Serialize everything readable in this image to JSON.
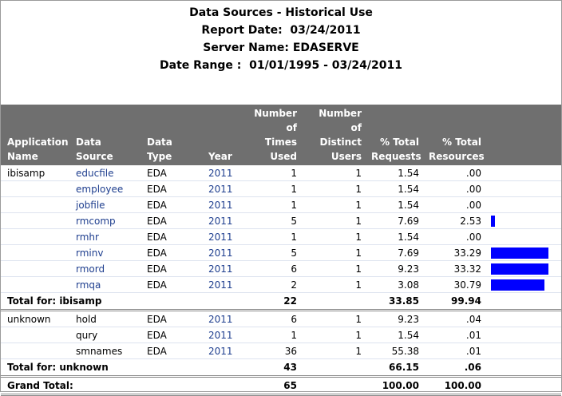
{
  "report": {
    "title": "Data Sources - Historical Use",
    "report_date": "Report Date:  03/24/2011",
    "server_name": "Server Name: EDASERVE",
    "date_range": "Date Range :  01/01/1995 - 03/24/2011"
  },
  "columns": {
    "application": [
      "Application",
      "Name"
    ],
    "data_source": "Data Source",
    "data_type": "Data Type",
    "year": "Year",
    "times_used": [
      "Number of",
      "Times",
      "Used"
    ],
    "distinct_users": [
      "Number of",
      "Distinct",
      "Users"
    ],
    "pct_requests": [
      "% Total",
      "Requests"
    ],
    "pct_resources": [
      "% Total",
      "Resources"
    ]
  },
  "groups": [
    {
      "app": "ibisamp",
      "rows": [
        {
          "source": "educfile",
          "type": "EDA",
          "year": "2011",
          "used": "1",
          "users": "1",
          "requests": "1.54",
          "resources": ".00",
          "bar_pct": 0,
          "link": true
        },
        {
          "source": "employee",
          "type": "EDA",
          "year": "2011",
          "used": "1",
          "users": "1",
          "requests": "1.54",
          "resources": ".00",
          "bar_pct": 0,
          "link": true
        },
        {
          "source": "jobfile",
          "type": "EDA",
          "year": "2011",
          "used": "1",
          "users": "1",
          "requests": "1.54",
          "resources": ".00",
          "bar_pct": 0,
          "link": true
        },
        {
          "source": "rmcomp",
          "type": "EDA",
          "year": "2011",
          "used": "5",
          "users": "1",
          "requests": "7.69",
          "resources": "2.53",
          "bar_pct": 2.53,
          "link": true
        },
        {
          "source": "rmhr",
          "type": "EDA",
          "year": "2011",
          "used": "1",
          "users": "1",
          "requests": "1.54",
          "resources": ".00",
          "bar_pct": 0,
          "link": true
        },
        {
          "source": "rminv",
          "type": "EDA",
          "year": "2011",
          "used": "5",
          "users": "1",
          "requests": "7.69",
          "resources": "33.29",
          "bar_pct": 33.29,
          "link": true
        },
        {
          "source": "rmord",
          "type": "EDA",
          "year": "2011",
          "used": "6",
          "users": "1",
          "requests": "9.23",
          "resources": "33.32",
          "bar_pct": 33.32,
          "link": true
        },
        {
          "source": "rmqa",
          "type": "EDA",
          "year": "2011",
          "used": "2",
          "users": "1",
          "requests": "3.08",
          "resources": "30.79",
          "bar_pct": 30.79,
          "link": true
        }
      ],
      "total_label": "Total for:  ibisamp",
      "total_used": "22",
      "total_requests": "33.85",
      "total_resources": "99.94"
    },
    {
      "app": "unknown",
      "rows": [
        {
          "source": "hold",
          "type": "EDA",
          "year": "2011",
          "used": "6",
          "users": "1",
          "requests": "9.23",
          "resources": ".04",
          "bar_pct": 0,
          "link": false
        },
        {
          "source": "qury",
          "type": "EDA",
          "year": "2011",
          "used": "1",
          "users": "1",
          "requests": "1.54",
          "resources": ".01",
          "bar_pct": 0,
          "link": false
        },
        {
          "source": "smnames",
          "type": "EDA",
          "year": "2011",
          "used": "36",
          "users": "1",
          "requests": "55.38",
          "resources": ".01",
          "bar_pct": 0,
          "link": false
        }
      ],
      "total_label": "Total for:  unknown",
      "total_used": "43",
      "total_requests": "66.15",
      "total_resources": ".06"
    }
  ],
  "grand_total": {
    "label": "Grand Total:",
    "used": "65",
    "requests": "100.00",
    "resources": "100.00"
  },
  "colors": {
    "bar": "#0000ff",
    "header_bg": "#6f6f6f",
    "link": "#1f3f8f"
  }
}
